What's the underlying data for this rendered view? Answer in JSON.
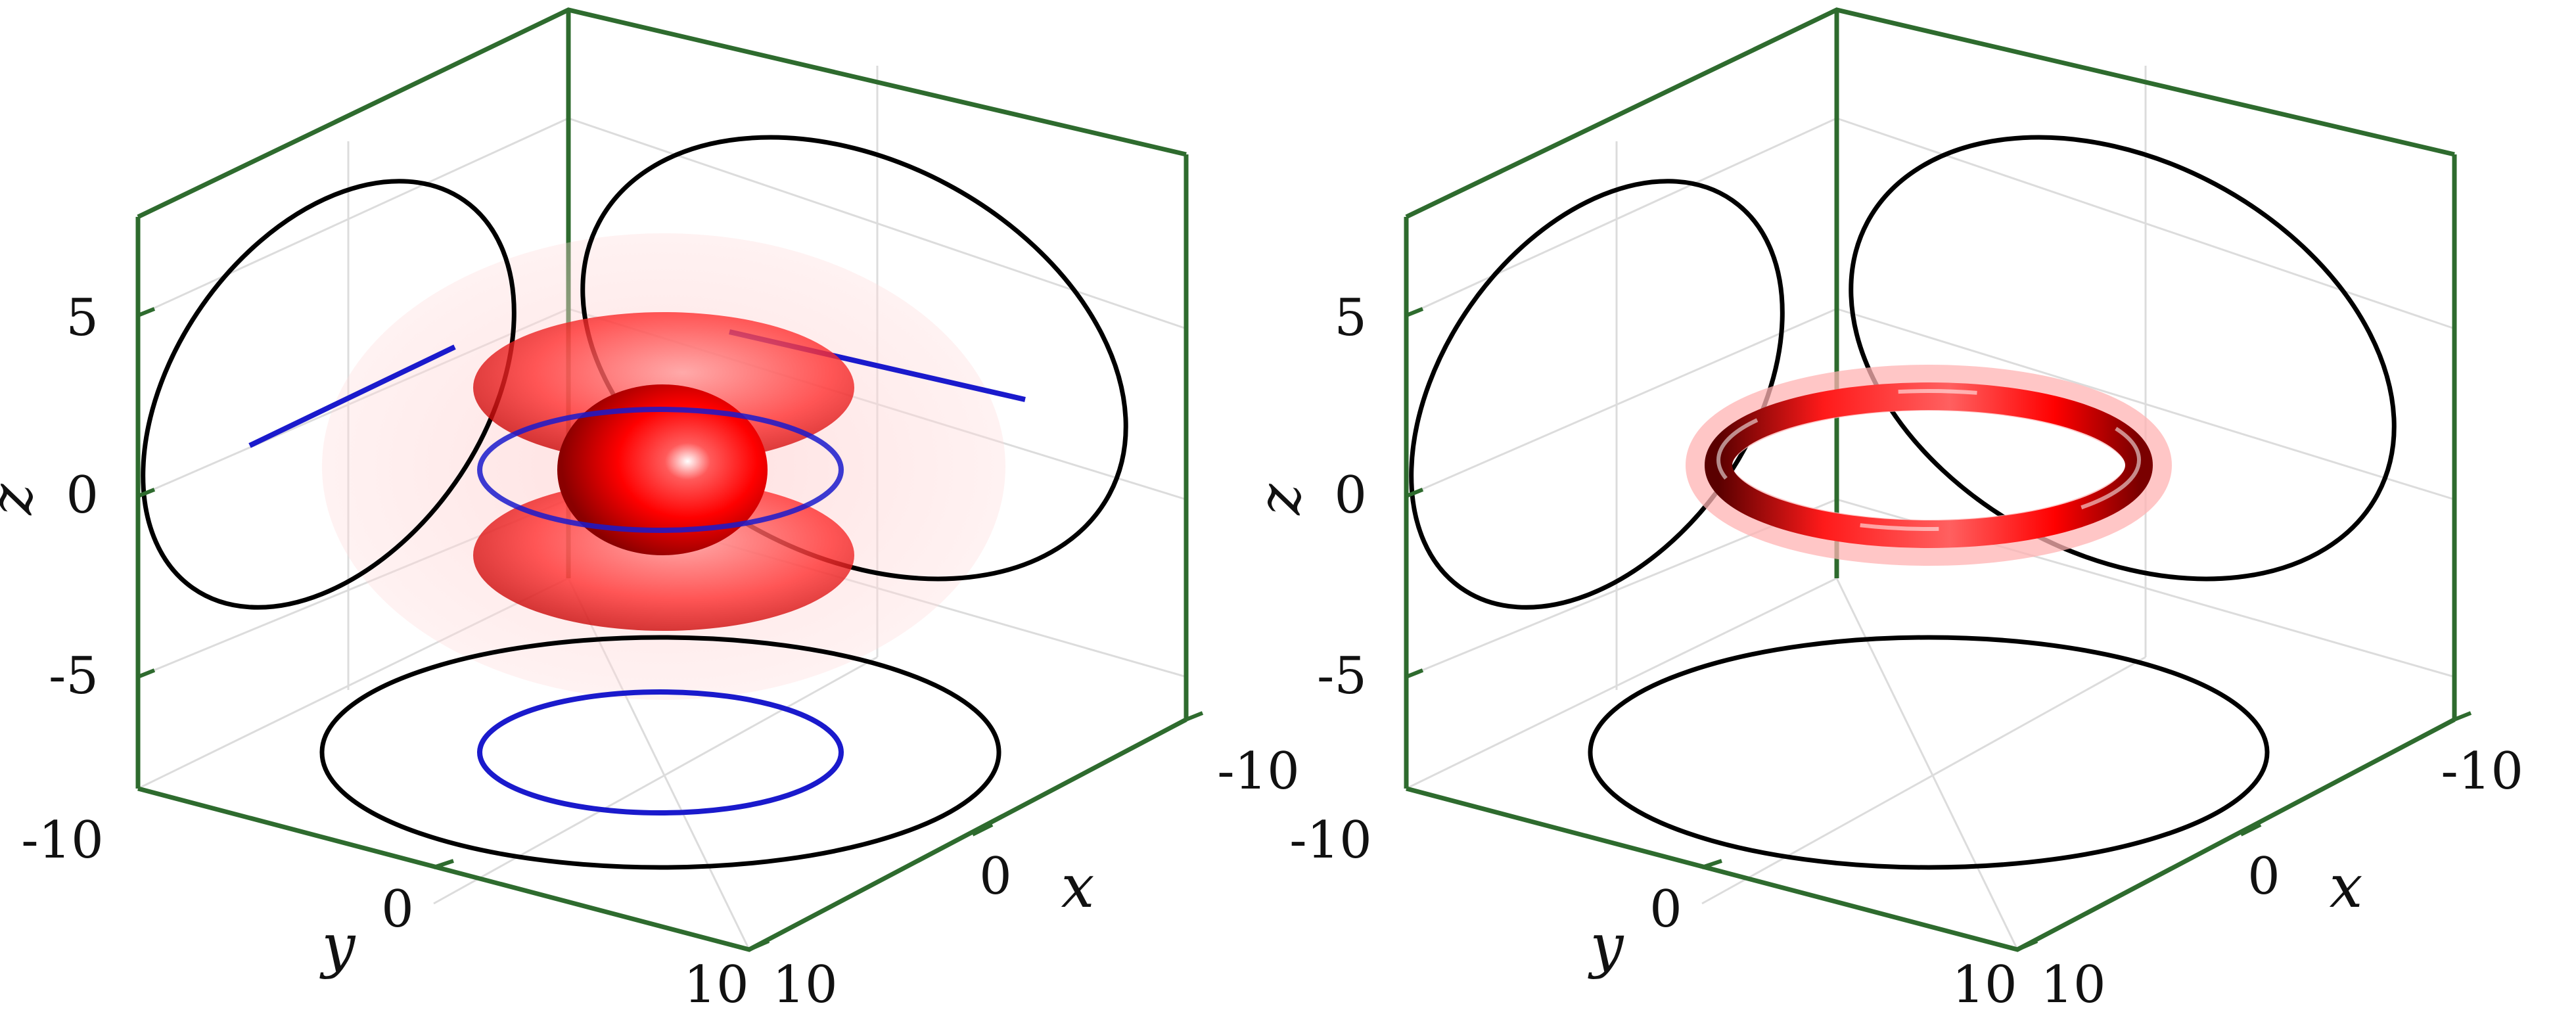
{
  "panels": [
    {
      "id": "left",
      "z_ticks": [
        "5",
        "0",
        "-5"
      ],
      "y_ticks": [
        "-10",
        "0",
        "10"
      ],
      "x_ticks": [
        "-10",
        "0",
        "10"
      ],
      "axis_labels": {
        "x": "x",
        "y": "y",
        "z": "z"
      }
    },
    {
      "id": "right",
      "z_ticks": [
        "5",
        "0",
        "-5"
      ],
      "y_ticks": [
        "-10",
        "0",
        "10"
      ],
      "x_ticks": [
        "-10",
        "0",
        "10"
      ],
      "axis_labels": {
        "x": "x",
        "y": "y",
        "z": "z"
      }
    }
  ],
  "colors": {
    "box_edge": "#2e6b2e",
    "grid": "#dcdcdc",
    "contour_black": "#000000",
    "contour_blue": "#1a1acc",
    "surface_red": "#ff0000",
    "halo_pink": "#ffb3b3"
  }
}
